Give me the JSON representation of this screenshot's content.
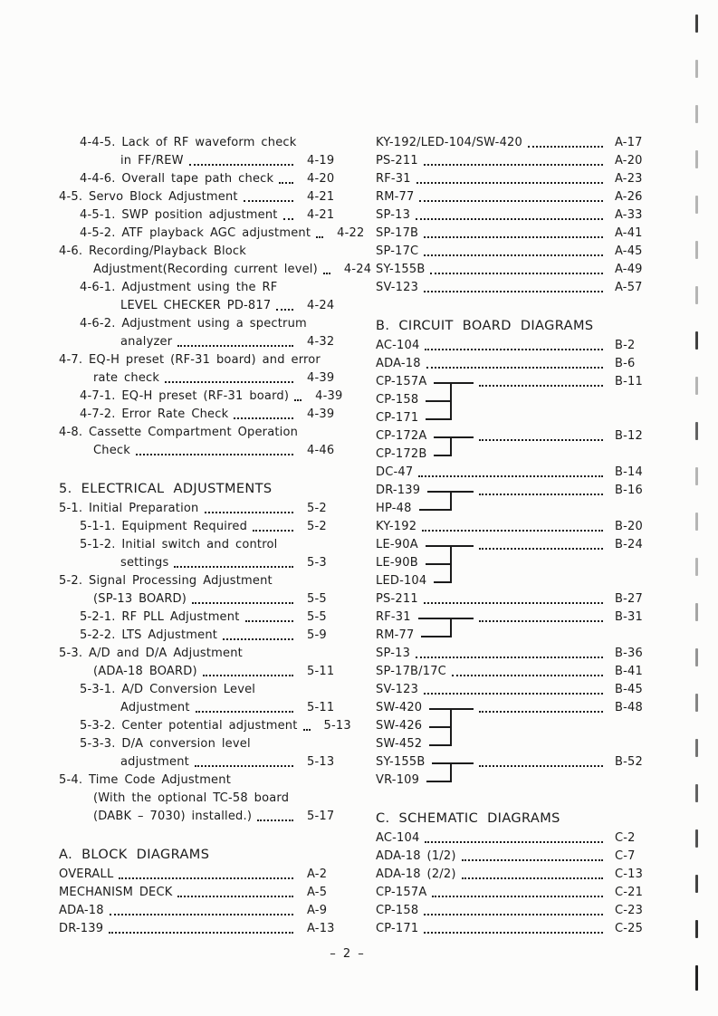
{
  "document": {
    "page_footer": "– 2 –",
    "colors": {
      "ink": "#1b1b1b",
      "paper": "#fcfcfb"
    },
    "columns": [
      {
        "name": "left",
        "blocks": [
          {
            "heading": null,
            "items": [
              {
                "type": "entry",
                "level": 1,
                "text": "4-4-5. Lack of RF waveform check",
                "page": null
              },
              {
                "type": "entry",
                "level": 3,
                "text": "in FF/REW",
                "page": "4-19"
              },
              {
                "type": "entry",
                "level": 1,
                "text": "4-4-6. Overall tape path check",
                "page": "4-20"
              },
              {
                "type": "entry",
                "level": 0,
                "text": "4-5. Servo Block Adjustment",
                "page": "4-21"
              },
              {
                "type": "entry",
                "level": 1,
                "text": "4-5-1. SWP position adjustment",
                "page": "4-21"
              },
              {
                "type": "entry",
                "level": 1,
                "text": "4-5-2. ATF playback AGC adjustment",
                "page": "4-22"
              },
              {
                "type": "entry",
                "level": 0,
                "text": "4-6. Recording/Playback Block",
                "page": null
              },
              {
                "type": "entry",
                "level": 2,
                "text": "Adjustment(Recording current level)",
                "page": "4-24"
              },
              {
                "type": "entry",
                "level": 1,
                "text": "4-6-1. Adjustment using the RF",
                "page": null
              },
              {
                "type": "entry",
                "level": 3,
                "text": "LEVEL CHECKER PD-817",
                "page": "4-24"
              },
              {
                "type": "entry",
                "level": 1,
                "text": "4-6-2. Adjustment using a spectrum",
                "page": null
              },
              {
                "type": "entry",
                "level": 3,
                "text": "analyzer",
                "page": "4-32"
              },
              {
                "type": "entry",
                "level": 0,
                "text": "4-7. EQ-H preset (RF-31 board) and error",
                "page": null
              },
              {
                "type": "entry",
                "level": 2,
                "text": "rate check",
                "page": "4-39"
              },
              {
                "type": "entry",
                "level": 1,
                "text": "4-7-1. EQ-H preset (RF-31 board)",
                "page": "4-39"
              },
              {
                "type": "entry",
                "level": 1,
                "text": "4-7-2. Error Rate Check",
                "page": "4-39"
              },
              {
                "type": "entry",
                "level": 0,
                "text": "4-8. Cassette Compartment Operation",
                "page": null
              },
              {
                "type": "entry",
                "level": 2,
                "text": "Check",
                "page": "4-46"
              }
            ]
          },
          {
            "heading": "5. ELECTRICAL ADJUSTMENTS",
            "items": [
              {
                "type": "entry",
                "level": 0,
                "text": "5-1. Initial Preparation",
                "page": "5-2"
              },
              {
                "type": "entry",
                "level": 1,
                "text": "5-1-1. Equipment Required",
                "page": "5-2"
              },
              {
                "type": "entry",
                "level": 1,
                "text": "5-1-2. Initial switch and control",
                "page": null
              },
              {
                "type": "entry",
                "level": 3,
                "text": "settings",
                "page": "5-3"
              },
              {
                "type": "entry",
                "level": 0,
                "text": "5-2. Signal Processing Adjustment",
                "page": null
              },
              {
                "type": "entry",
                "level": 2,
                "text": "(SP-13 BOARD)",
                "page": "5-5"
              },
              {
                "type": "entry",
                "level": 1,
                "text": "5-2-1. RF PLL Adjustment",
                "page": "5-5"
              },
              {
                "type": "entry",
                "level": 1,
                "text": "5-2-2. LTS Adjustment",
                "page": "5-9"
              },
              {
                "type": "entry",
                "level": 0,
                "text": "5-3. A/D and D/A Adjustment",
                "page": null
              },
              {
                "type": "entry",
                "level": 2,
                "text": "(ADA-18 BOARD)",
                "page": "5-11"
              },
              {
                "type": "entry",
                "level": 1,
                "text": "5-3-1. A/D Conversion Level",
                "page": null
              },
              {
                "type": "entry",
                "level": 3,
                "text": "Adjustment",
                "page": "5-11"
              },
              {
                "type": "entry",
                "level": 1,
                "text": "5-3-2. Center potential adjustment",
                "page": "5-13"
              },
              {
                "type": "entry",
                "level": 1,
                "text": "5-3-3. D/A conversion level",
                "page": null
              },
              {
                "type": "entry",
                "level": 3,
                "text": "adjustment",
                "page": "5-13"
              },
              {
                "type": "entry",
                "level": 0,
                "text": "5-4. Time Code Adjustment",
                "page": null
              },
              {
                "type": "entry",
                "level": 2,
                "text": "(With the optional TC-58 board",
                "page": null
              },
              {
                "type": "entry",
                "level": 2,
                "text": "(DABK – 7030) installed.)",
                "page": "5-17"
              }
            ]
          },
          {
            "heading": "A. BLOCK DIAGRAMS",
            "items": [
              {
                "type": "entry",
                "level": 0,
                "text": "OVERALL",
                "page": "A-2"
              },
              {
                "type": "entry",
                "level": 0,
                "text": "MECHANISM DECK",
                "page": "A-5"
              },
              {
                "type": "entry",
                "level": 0,
                "text": "ADA-18",
                "page": "A-9"
              },
              {
                "type": "entry",
                "level": 0,
                "text": "DR-139",
                "page": "A-13"
              }
            ]
          }
        ]
      },
      {
        "name": "right",
        "blocks": [
          {
            "heading": null,
            "items": [
              {
                "type": "entry",
                "level": 0,
                "text": "KY-192/LED-104/SW-420",
                "page": "A-17"
              },
              {
                "type": "entry",
                "level": 0,
                "text": "PS-211",
                "page": "A-20"
              },
              {
                "type": "entry",
                "level": 0,
                "text": "RF-31",
                "page": "A-23"
              },
              {
                "type": "entry",
                "level": 0,
                "text": "RM-77",
                "page": "A-26"
              },
              {
                "type": "entry",
                "level": 0,
                "text": "SP-13",
                "page": "A-33"
              },
              {
                "type": "entry",
                "level": 0,
                "text": "SP-17B",
                "page": "A-41"
              },
              {
                "type": "entry",
                "level": 0,
                "text": "SP-17C",
                "page": "A-45"
              },
              {
                "type": "entry",
                "level": 0,
                "text": "SY-155B",
                "page": "A-49"
              },
              {
                "type": "entry",
                "level": 0,
                "text": "SV-123",
                "page": "A-57"
              }
            ]
          },
          {
            "heading": "B. CIRCUIT BOARD DIAGRAMS",
            "items": [
              {
                "type": "entry",
                "level": 0,
                "text": "AC-104",
                "page": "B-2"
              },
              {
                "type": "entry",
                "level": 0,
                "text": "ADA-18",
                "page": "B-6"
              },
              {
                "type": "group",
                "members": [
                  "CP-157A",
                  "CP-158",
                  "CP-171"
                ],
                "page": "B-11"
              },
              {
                "type": "group",
                "members": [
                  "CP-172A",
                  "CP-172B"
                ],
                "page": "B-12"
              },
              {
                "type": "entry",
                "level": 0,
                "text": "DC-47",
                "page": "B-14"
              },
              {
                "type": "group",
                "members": [
                  "DR-139",
                  "HP-48"
                ],
                "page": "B-16"
              },
              {
                "type": "entry",
                "level": 0,
                "text": "KY-192",
                "page": "B-20"
              },
              {
                "type": "group",
                "members": [
                  "LE-90A",
                  "LE-90B",
                  "LED-104"
                ],
                "page": "B-24"
              },
              {
                "type": "entry",
                "level": 0,
                "text": "PS-211",
                "page": "B-27"
              },
              {
                "type": "group",
                "members": [
                  "RF-31",
                  "RM-77"
                ],
                "page": "B-31"
              },
              {
                "type": "entry",
                "level": 0,
                "text": "SP-13",
                "page": "B-36"
              },
              {
                "type": "entry",
                "level": 0,
                "text": "SP-17B/17C",
                "page": "B-41"
              },
              {
                "type": "entry",
                "level": 0,
                "text": "SV-123",
                "page": "B-45"
              },
              {
                "type": "group",
                "members": [
                  "SW-420",
                  "SW-426",
                  "SW-452"
                ],
                "page": "B-48"
              },
              {
                "type": "group",
                "members": [
                  "SY-155B",
                  "VR-109"
                ],
                "page": "B-52"
              }
            ]
          },
          {
            "heading": "C. SCHEMATIC DIAGRAMS",
            "items": [
              {
                "type": "entry",
                "level": 0,
                "text": "AC-104",
                "page": "C-2"
              },
              {
                "type": "entry",
                "level": 0,
                "text": "ADA-18 (1/2)",
                "page": "C-7"
              },
              {
                "type": "entry",
                "level": 0,
                "text": "ADA-18 (2/2)",
                "page": "C-13"
              },
              {
                "type": "entry",
                "level": 0,
                "text": "CP-157A",
                "page": "C-21"
              },
              {
                "type": "entry",
                "level": 0,
                "text": "CP-158",
                "page": "C-23"
              },
              {
                "type": "entry",
                "level": 0,
                "text": "CP-171",
                "page": "C-25"
              }
            ]
          }
        ]
      }
    ]
  }
}
